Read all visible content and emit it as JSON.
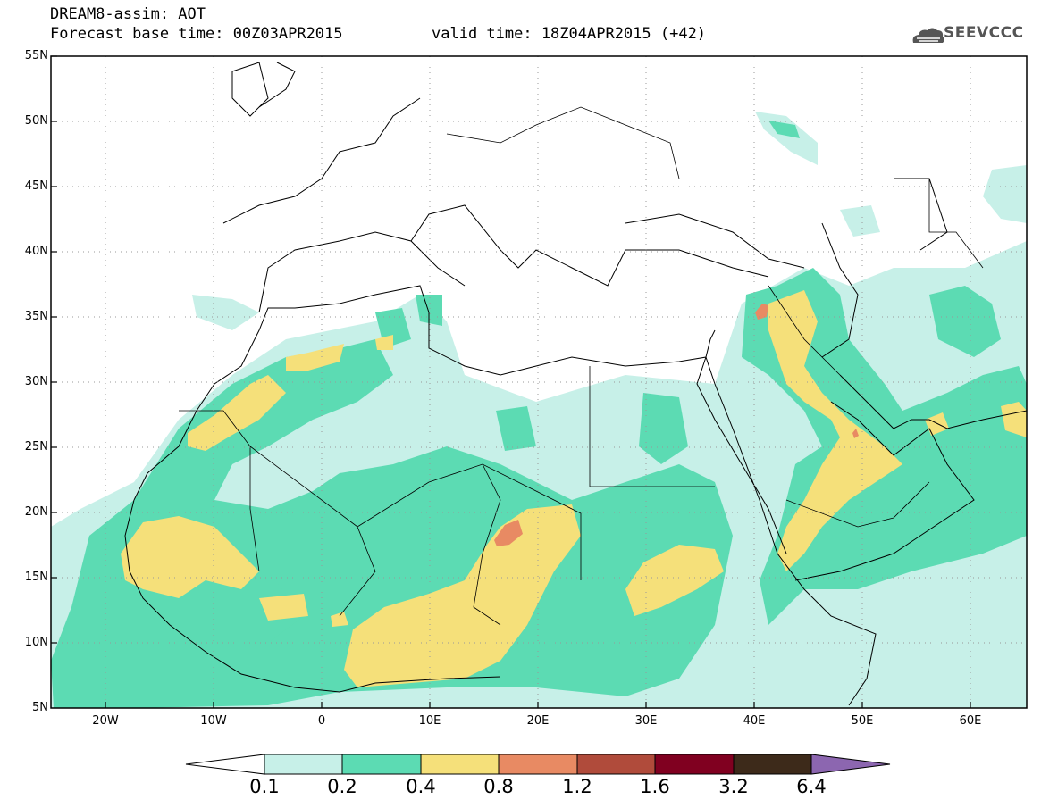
{
  "header": {
    "title_line1": "DREAM8-assim: AOT",
    "base_time": "Forecast base time: 00Z03APR2015",
    "valid_time": "valid time: 18Z04APR2015 (+42)",
    "logo_text": "SEEVCCC"
  },
  "map": {
    "lat_labels": [
      "55N",
      "50N",
      "45N",
      "40N",
      "35N",
      "30N",
      "25N",
      "20N",
      "15N",
      "10N",
      "5N"
    ],
    "lon_labels": [
      "20W",
      "10W",
      "0",
      "10E",
      "20E",
      "30E",
      "40E",
      "50E",
      "60E"
    ],
    "lat_range": [
      5,
      55
    ],
    "lon_range": [
      -25,
      65
    ],
    "grid": "dotted"
  },
  "colorbar": {
    "labels": [
      "0.1",
      "0.2",
      "0.4",
      "0.8",
      "1.2",
      "1.6",
      "3.2",
      "6.4"
    ],
    "colors": [
      "#c7f0e8",
      "#5cdbb3",
      "#f5e07a",
      "#e88a63",
      "#b04b3b",
      "#800020",
      "#3d2a1a",
      "#8c66b0"
    ]
  }
}
